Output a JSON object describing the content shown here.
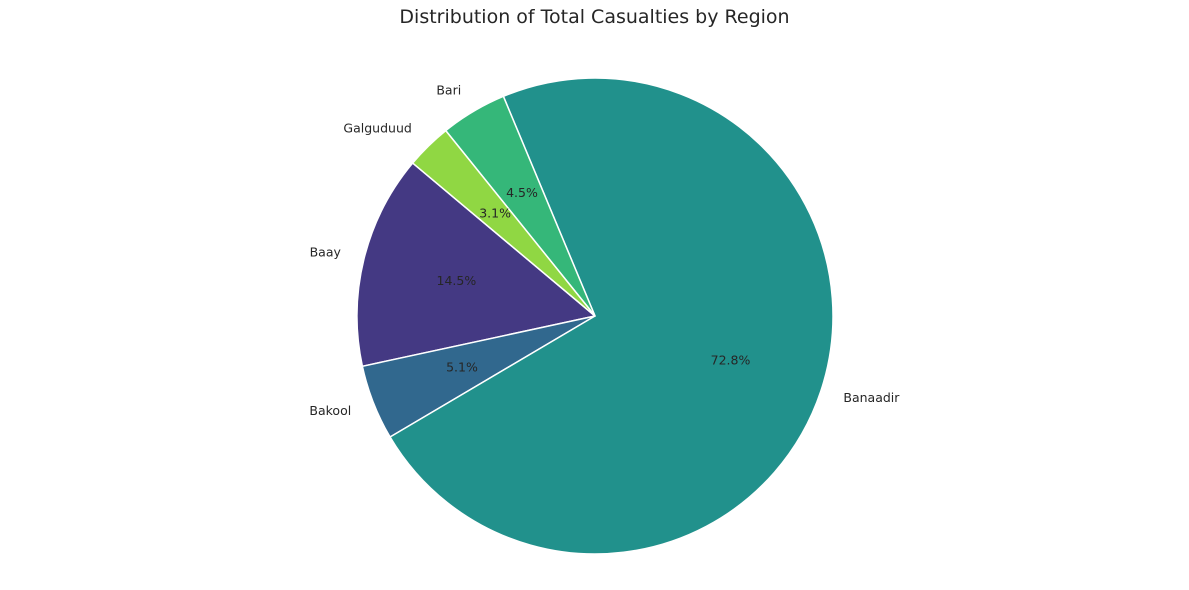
{
  "chart_data": {
    "type": "pie",
    "title": "Distribution of Total Casualties by Region",
    "start_angle_deg": 140,
    "counterclock": true,
    "edge_color": "#ffffff",
    "slices": [
      {
        "label": "Baay",
        "value": 14.5,
        "pct_label": "14.5%",
        "color": "#443983"
      },
      {
        "label": "Bakool",
        "value": 5.1,
        "pct_label": "5.1%",
        "color": "#31688e"
      },
      {
        "label": "Banaadir",
        "value": 72.8,
        "pct_label": "72.8%",
        "color": "#21918c"
      },
      {
        "label": "Bari",
        "value": 4.5,
        "pct_label": "4.5%",
        "color": "#35b779"
      },
      {
        "label": "Galguduud",
        "value": 3.1,
        "pct_label": "3.1%",
        "color": "#90d743"
      }
    ]
  }
}
